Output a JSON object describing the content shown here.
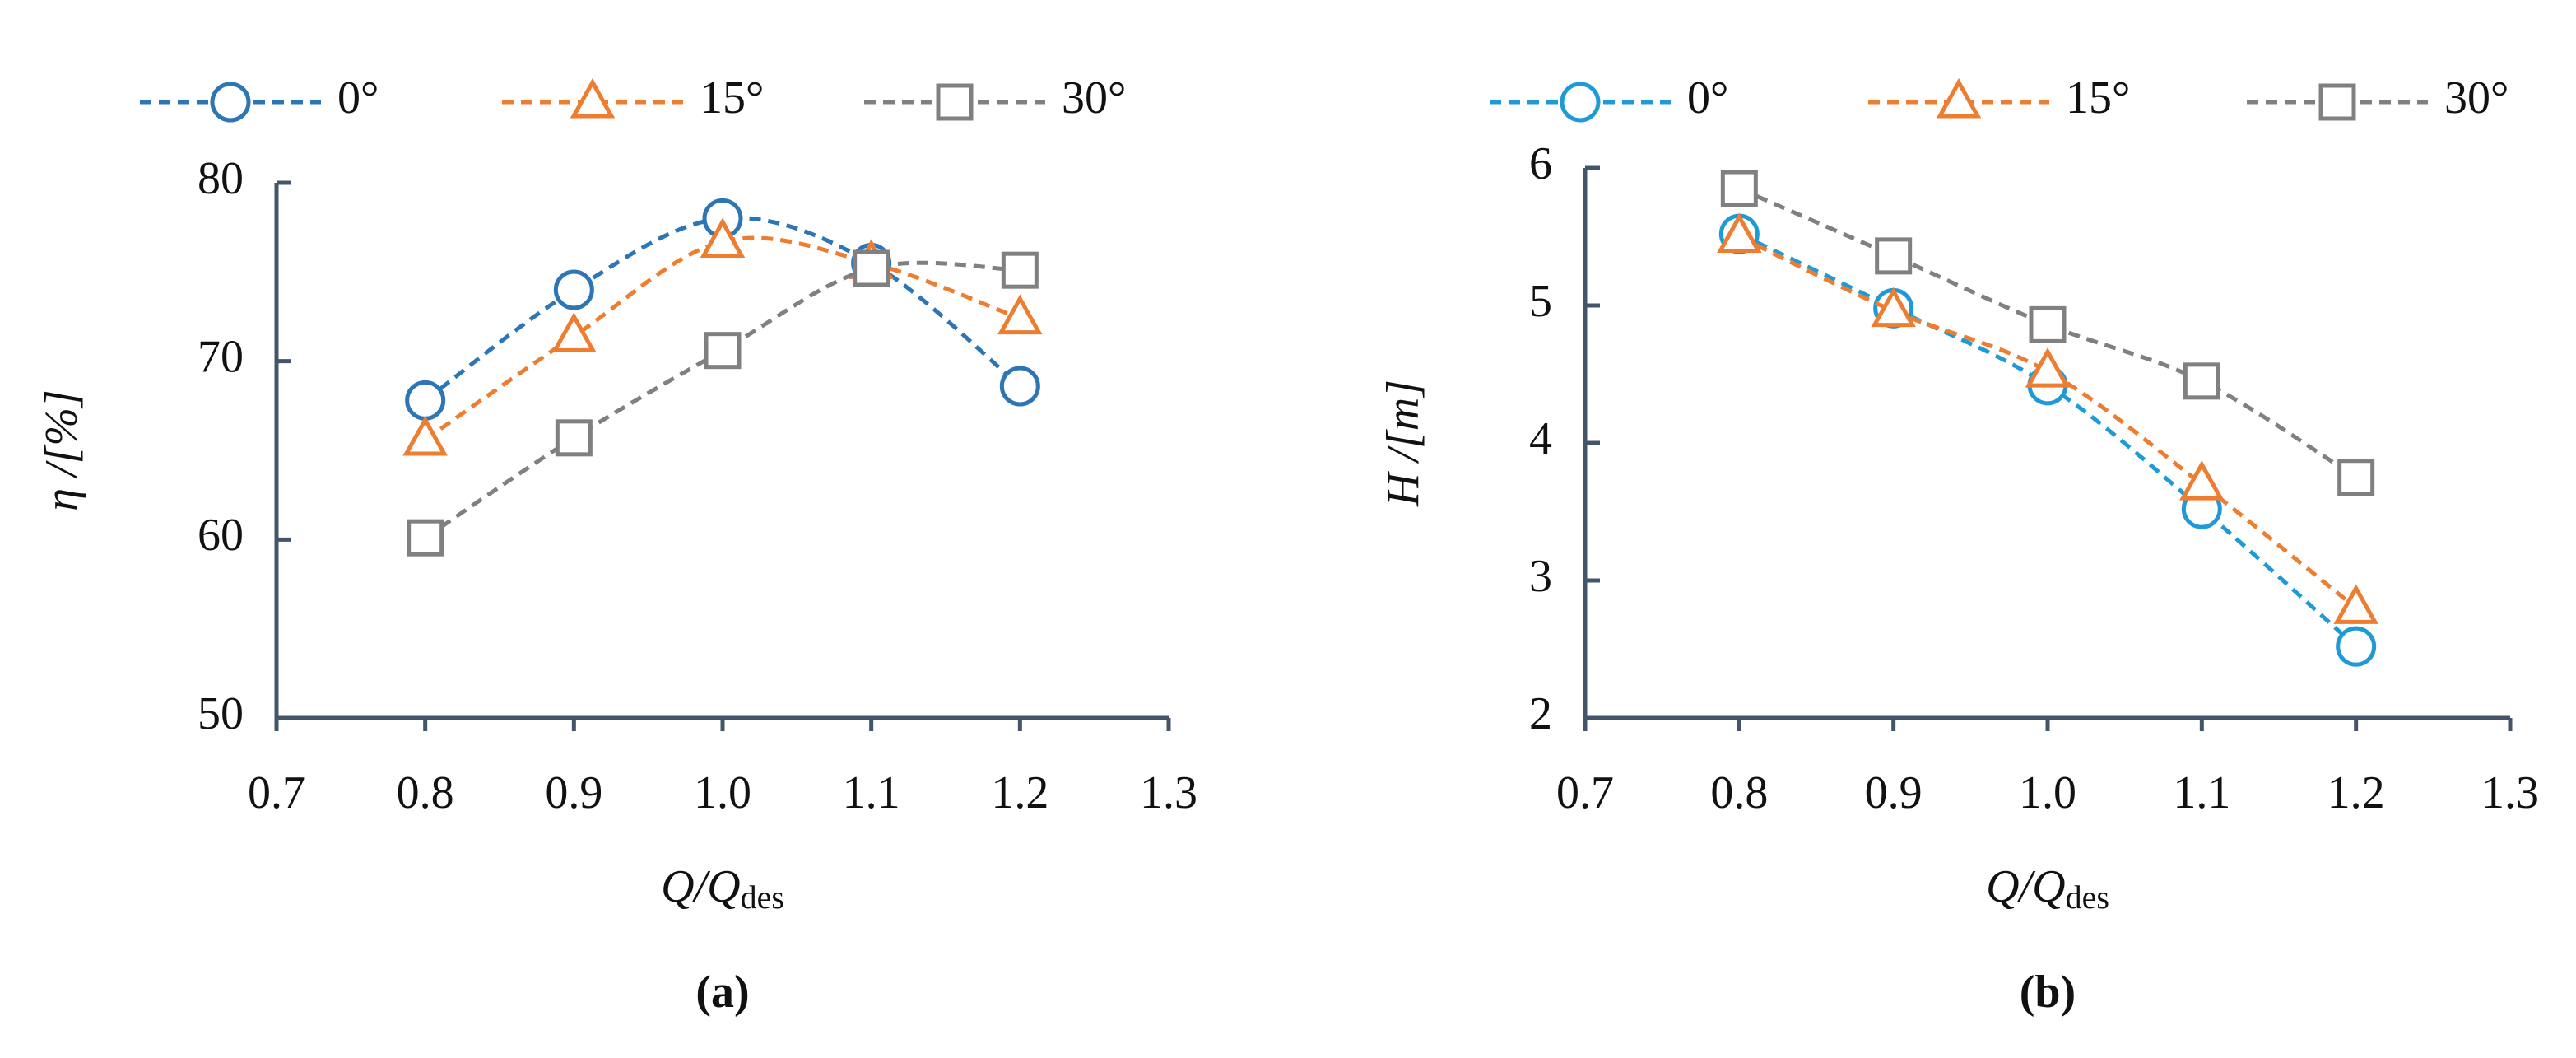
{
  "chart_data": [
    {
      "type": "line",
      "label": "(a)",
      "ylabel": "η /[%]",
      "xlabel": "Q/Q",
      "xlabel_sub": "des",
      "x": [
        0.8,
        0.9,
        1.0,
        1.1,
        1.2
      ],
      "xlim": [
        0.7,
        1.3
      ],
      "xticks": [
        0.7,
        0.8,
        0.9,
        {
          "value": 1,
          "label": "1.0"
        },
        1.1,
        1.2,
        1.3
      ],
      "ylim": [
        50,
        80
      ],
      "yticks": [
        50,
        60,
        70,
        80
      ],
      "smooth": true,
      "series": [
        {
          "name": "0°",
          "color": "#2e75b6",
          "marker": "circle",
          "values": [
            67.8,
            74.0,
            78.0,
            75.5,
            68.6
          ]
        },
        {
          "name": "15°",
          "color": "#ed7d31",
          "marker": "triangle",
          "values": [
            65.6,
            71.4,
            76.7,
            75.5,
            72.4
          ]
        },
        {
          "name": "30°",
          "color": "#808080",
          "marker": "square",
          "values": [
            60.1,
            65.7,
            70.6,
            75.2,
            75.1
          ]
        }
      ]
    },
    {
      "type": "line",
      "label": "(b)",
      "ylabel": "H /[m]",
      "xlabel": "Q/Q",
      "xlabel_sub": "des",
      "x": [
        0.8,
        0.9,
        1.0,
        1.1,
        1.2
      ],
      "xlim": [
        0.7,
        1.3
      ],
      "xticks": [
        0.7,
        0.8,
        0.9,
        {
          "value": 1,
          "label": "1.0"
        },
        1.1,
        1.2,
        1.3
      ],
      "ylim": [
        2,
        6
      ],
      "yticks": [
        2,
        3,
        4,
        5,
        6
      ],
      "smooth": true,
      "series": [
        {
          "name": "0°",
          "color": "#1f9ad6",
          "marker": "circle",
          "values": [
            5.52,
            4.98,
            4.42,
            3.52,
            2.52
          ]
        },
        {
          "name": "15°",
          "color": "#ed7d31",
          "marker": "triangle",
          "values": [
            5.5,
            4.96,
            4.52,
            3.7,
            2.8
          ]
        },
        {
          "name": "30°",
          "color": "#808080",
          "marker": "square",
          "values": [
            5.85,
            5.36,
            4.86,
            4.45,
            3.75
          ]
        }
      ]
    }
  ]
}
